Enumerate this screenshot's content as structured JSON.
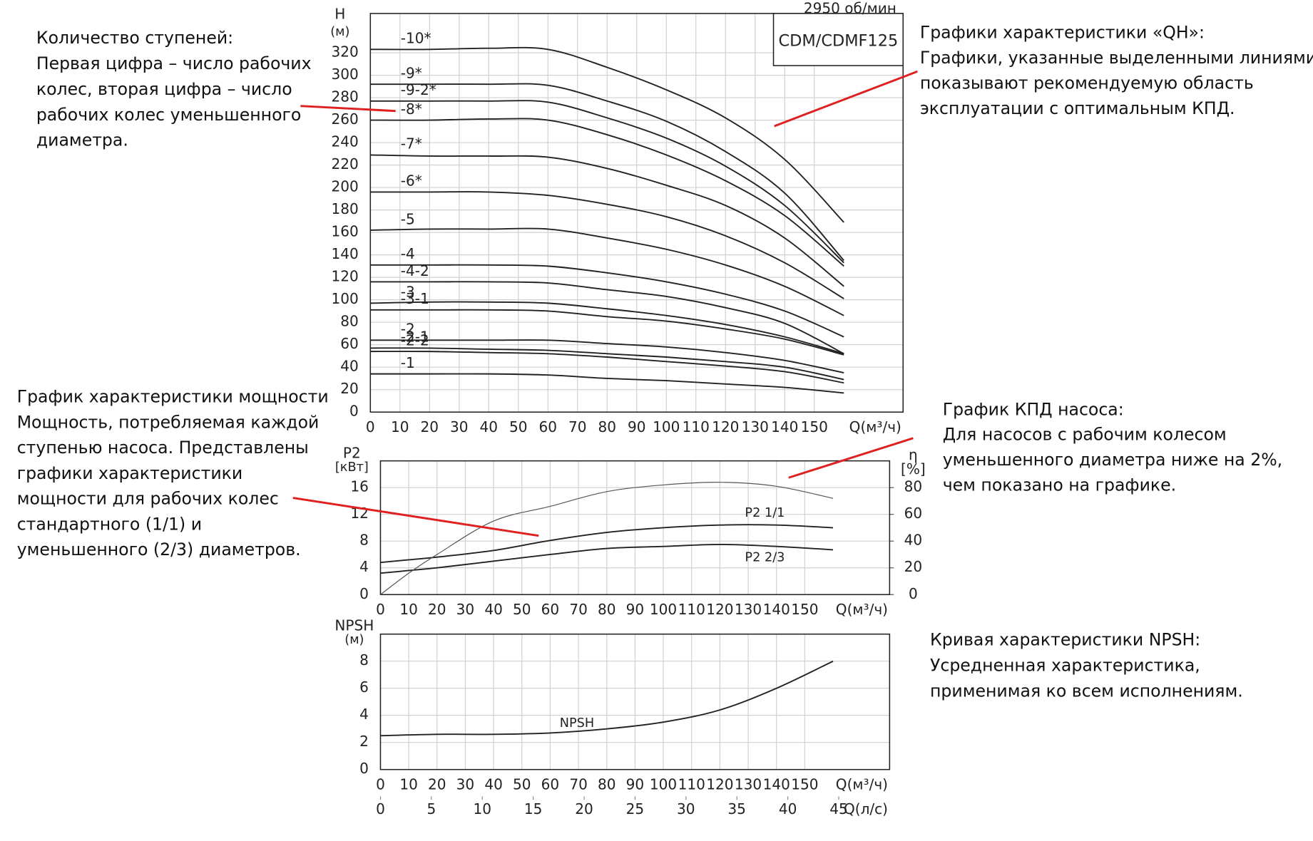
{
  "chart_data": [
    {
      "type": "line",
      "title": "CDM/CDMF125",
      "subtitle": "2950 об/мин",
      "y_label_lines": [
        "H",
        "(м)"
      ],
      "x_label": "Q(м³/ч)",
      "xlim": [
        0,
        180
      ],
      "xticks": [
        0,
        10,
        20,
        30,
        40,
        50,
        60,
        70,
        80,
        90,
        100,
        110,
        120,
        130,
        140,
        150
      ],
      "ylim": [
        0,
        355
      ],
      "yticks": [
        0,
        20,
        40,
        60,
        80,
        100,
        120,
        140,
        160,
        180,
        200,
        220,
        240,
        260,
        280,
        300,
        320
      ],
      "grid": true,
      "x": [
        0,
        20,
        40,
        60,
        80,
        100,
        120,
        140,
        160
      ],
      "series": [
        {
          "name": "-10*",
          "color": "#222222",
          "values": [
            323,
            323,
            324,
            323,
            307,
            287,
            262,
            225,
            169
          ]
        },
        {
          "name": "-9*",
          "color": "#222222",
          "values": [
            292,
            292,
            292,
            291,
            277,
            259,
            232,
            195,
            135
          ]
        },
        {
          "name": "-9-2*",
          "color": "#222222",
          "values": [
            277,
            277,
            277,
            276,
            262,
            244,
            219,
            184,
            133
          ]
        },
        {
          "name": "-8*",
          "color": "#222222",
          "values": [
            260,
            260,
            261,
            260,
            247,
            229,
            206,
            175,
            130
          ]
        },
        {
          "name": "-7*",
          "color": "#222222",
          "values": [
            229,
            228,
            228,
            227,
            217,
            202,
            184,
            155,
            112
          ]
        },
        {
          "name": "-6*",
          "color": "#222222",
          "values": [
            196,
            196,
            196,
            193,
            185,
            174,
            157,
            133,
            101
          ]
        },
        {
          "name": "-5",
          "color": "#222222",
          "values": [
            162,
            163,
            163,
            163,
            155,
            145,
            131,
            112,
            86
          ]
        },
        {
          "name": "-4",
          "color": "#222222",
          "values": [
            131,
            131,
            131,
            130,
            124,
            116,
            105,
            90,
            67
          ]
        },
        {
          "name": "-4-2",
          "color": "#222222",
          "values": [
            116,
            116,
            116,
            115,
            109,
            103,
            93,
            79,
            52
          ]
        },
        {
          "name": "-3",
          "color": "#222222",
          "values": [
            97,
            98,
            98,
            97,
            92,
            86,
            78,
            67,
            52
          ]
        },
        {
          "name": "-3-1",
          "color": "#222222",
          "values": [
            91,
            91,
            91,
            90,
            85,
            81,
            74,
            65,
            51
          ]
        },
        {
          "name": "-2",
          "color": "#222222",
          "values": [
            64,
            64,
            64,
            64,
            61,
            58,
            53,
            46,
            35
          ]
        },
        {
          "name": "-2-1",
          "color": "#222222",
          "values": [
            57,
            57,
            56,
            55,
            52,
            49,
            45,
            40,
            29
          ]
        },
        {
          "name": "-2-2",
          "color": "#222222",
          "values": [
            54,
            54,
            53,
            52,
            49,
            45,
            41,
            36,
            26
          ]
        },
        {
          "name": "-1",
          "color": "#222222",
          "values": [
            34,
            34,
            34,
            33,
            30,
            28,
            25,
            22,
            17
          ]
        }
      ]
    },
    {
      "type": "line",
      "y_label_lines": [
        "P2",
        "[кВт]"
      ],
      "y2_label_lines": [
        "η",
        "[%]"
      ],
      "x_label": "Q(м³/ч)",
      "xlim": [
        0,
        180
      ],
      "xticks": [
        0,
        10,
        20,
        30,
        40,
        50,
        60,
        70,
        80,
        90,
        100,
        110,
        120,
        130,
        140,
        150
      ],
      "ylim": [
        0,
        20
      ],
      "yticks": [
        0,
        4,
        8,
        12,
        16
      ],
      "y2lim": [
        0,
        100
      ],
      "y2ticks": [
        0,
        20,
        40,
        60,
        80
      ],
      "grid": true,
      "x": [
        0,
        10,
        20,
        40,
        60,
        80,
        100,
        120,
        140,
        160
      ],
      "series": [
        {
          "name": "P2 1/1",
          "color": "#222222",
          "values": [
            4.8,
            5.2,
            5.6,
            6.6,
            8.1,
            9.3,
            10.0,
            10.4,
            10.4,
            10.0
          ]
        },
        {
          "name": "P2 2/3",
          "color": "#222222",
          "values": [
            3.2,
            3.6,
            4.0,
            5.0,
            6.0,
            6.9,
            7.2,
            7.5,
            7.2,
            6.7
          ]
        },
        {
          "axis": "y2",
          "color": "#555555",
          "values": [
            0,
            16,
            30,
            55,
            66,
            77,
            82,
            84,
            81,
            72
          ]
        }
      ]
    },
    {
      "type": "line",
      "y_label_lines": [
        "NPSH",
        "(м)"
      ],
      "x_label": "Q(м³/ч)",
      "x2_label": "Q(л/с)",
      "xlim": [
        0,
        180
      ],
      "xticks": [
        0,
        10,
        20,
        30,
        40,
        50,
        60,
        70,
        80,
        90,
        100,
        110,
        120,
        130,
        140,
        150
      ],
      "x2lim": [
        0,
        50
      ],
      "x2ticks": [
        0,
        5,
        10,
        15,
        20,
        25,
        30,
        35,
        40,
        45
      ],
      "ylim": [
        0,
        10
      ],
      "yticks": [
        0,
        2,
        4,
        6,
        8
      ],
      "grid": true,
      "x": [
        0,
        20,
        40,
        60,
        80,
        100,
        120,
        140,
        160
      ],
      "series": [
        {
          "name": "NPSH",
          "color": "#222222",
          "values": [
            2.5,
            2.6,
            2.6,
            2.7,
            3.0,
            3.5,
            4.4,
            6.0,
            8.0
          ]
        }
      ]
    }
  ],
  "annotations": [
    {
      "lines": [
        "Количество ступеней:",
        "Первая цифра – число рабочих",
        "колес, вторая цифра – число",
        "рабочих колес уменьшенного",
        "диаметра."
      ]
    },
    {
      "lines": [
        "Графики характеристики «QH»:",
        "Графики, указанные выделенными линиями,",
        "показывают рекомендуемую область",
        "эксплуатации с оптимальным КПД."
      ]
    },
    {
      "lines": [
        "График характеристики мощности",
        "Мощность, потребляемая каждой",
        "ступенью насоса. Представлены",
        "графики характеристики",
        "мощности для рабочих колес",
        "стандартного (1/1) и",
        "уменьшенного (2/3) диаметров."
      ]
    },
    {
      "lines": [
        "График КПД насоса:",
        "Для насосов с рабочим колесом",
        "уменьшенного диаметра ниже на 2%,",
        "чем показано на графике."
      ]
    },
    {
      "lines": [
        "Кривая характеристики NPSH:",
        "Усредненная характеристика,",
        "применимая ко всем исполнениям."
      ]
    }
  ]
}
